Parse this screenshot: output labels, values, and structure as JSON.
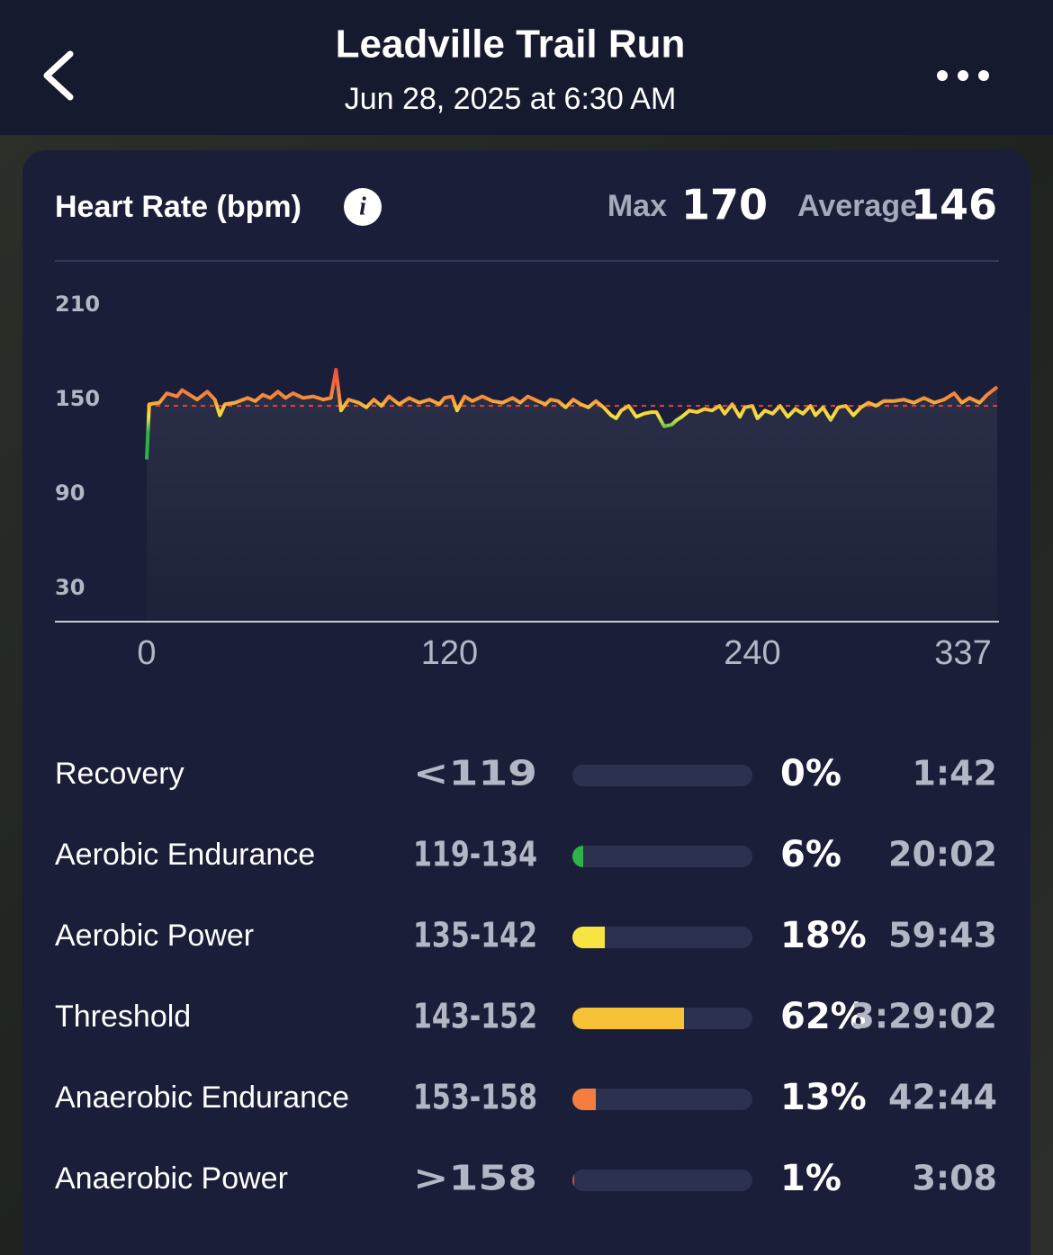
{
  "header": {
    "title": "Leadville Trail Run",
    "subtitle": "Jun 28, 2025 at 6:30 AM"
  },
  "card": {
    "title": "Heart Rate (bpm)",
    "max_label": "Max",
    "average_label": "Average"
  },
  "chart_data": [
    {
      "type": "line",
      "max": 170,
      "average": 146,
      "x": [
        0,
        1,
        5,
        8,
        12,
        14,
        17,
        20,
        24,
        27,
        29,
        31,
        35,
        40,
        43,
        46,
        49,
        52,
        55,
        58,
        62,
        66,
        70,
        73,
        75,
        77,
        80,
        84,
        87,
        90,
        93,
        96,
        100,
        104,
        108,
        112,
        116,
        118,
        121,
        123,
        126,
        129,
        133,
        137,
        141,
        145,
        148,
        151,
        155,
        158,
        160,
        163,
        166,
        169,
        172,
        175,
        178,
        181,
        184,
        186,
        188,
        191,
        194,
        197,
        200,
        202,
        205,
        208,
        210,
        212,
        215,
        218,
        221,
        224,
        227,
        229,
        232,
        235,
        237,
        240,
        242,
        245,
        248,
        251,
        254,
        257,
        260,
        263,
        265,
        268,
        271,
        274,
        277,
        280,
        283,
        286,
        289,
        292,
        296,
        300,
        304,
        308,
        312,
        316,
        320,
        323,
        326,
        330,
        333,
        337
      ],
      "values": [
        112,
        147,
        148,
        154,
        152,
        156,
        153,
        150,
        155,
        150,
        140,
        147,
        148,
        151,
        149,
        153,
        151,
        155,
        151,
        154,
        151,
        152,
        150,
        151,
        169,
        143,
        150,
        148,
        145,
        150,
        146,
        152,
        147,
        151,
        148,
        150,
        147,
        151,
        152,
        143,
        152,
        149,
        152,
        149,
        148,
        151,
        148,
        152,
        149,
        147,
        150,
        149,
        145,
        150,
        147,
        145,
        149,
        145,
        140,
        138,
        143,
        146,
        139,
        141,
        142,
        142,
        133,
        134,
        137,
        139,
        143,
        142,
        144,
        143,
        146,
        141,
        147,
        139,
        145,
        146,
        138,
        143,
        141,
        146,
        139,
        144,
        141,
        146,
        140,
        145,
        137,
        145,
        146,
        140,
        145,
        148,
        146,
        149,
        149,
        150,
        148,
        151,
        148,
        150,
        154,
        148,
        151,
        148,
        153,
        158
      ],
      "xlim": [
        0,
        337
      ],
      "xticks": [
        0,
        120,
        240,
        337
      ],
      "ylim": [
        9,
        226
      ],
      "yticks": [
        30,
        90,
        150,
        210
      ]
    },
    {
      "type": "bar",
      "categories": [
        "Recovery",
        "Aerobic Endurance",
        "Aerobic Power",
        "Threshold",
        "Anaerobic Endurance",
        "Anaerobic Power"
      ],
      "ranges": [
        "<119",
        "119-134",
        "135-142",
        "143-152",
        "153-158",
        ">158"
      ],
      "values": [
        0,
        6,
        18,
        62,
        13,
        1
      ],
      "value_labels": [
        "0%",
        "6%",
        "18%",
        "62%",
        "13%",
        "1%"
      ],
      "times": [
        "1:42",
        "20:02",
        "59:43",
        "3:29:02",
        "42:44",
        "3:08"
      ],
      "colors": [
        "#8a8fa0",
        "#2eb34a",
        "#f7e443",
        "#f7c236",
        "#f57d3f",
        "#e8433a"
      ],
      "xlim": [
        0,
        100
      ]
    }
  ]
}
